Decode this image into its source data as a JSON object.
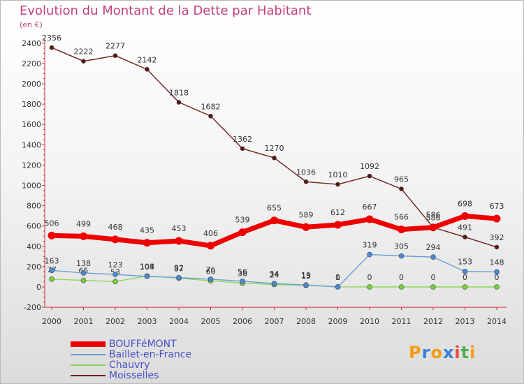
{
  "header": {
    "title": "Evolution du Montant de la Dette par Habitant",
    "unit": "(en €)"
  },
  "logo": {
    "letters": [
      "P",
      "r",
      "o",
      "x",
      "i",
      "t",
      "i"
    ],
    "colors": [
      "#f39c12",
      "#3a7dd8",
      "#f39c12",
      "#3a7dd8",
      "#e74c3c",
      "#4caf50",
      "#f39c12"
    ]
  },
  "chart_data": {
    "type": "line",
    "title": "Evolution du Montant de la Dette par Habitant",
    "ylabel": "(en €)",
    "xlabel": "",
    "x": [
      "2000",
      "2001",
      "2002",
      "2003",
      "2004",
      "2005",
      "2006",
      "2007",
      "2008",
      "2009",
      "2010",
      "2011",
      "2012",
      "2013",
      "2014"
    ],
    "ylim": [
      -200,
      2400
    ],
    "yticks": [
      -200,
      0,
      200,
      400,
      600,
      800,
      1000,
      1200,
      1400,
      1600,
      1800,
      2000,
      2200,
      2400
    ],
    "grid": false,
    "legend_position": "bottom-left",
    "series": [
      {
        "name": "BOUFFéMONT",
        "color": "#ee0000",
        "values": [
          506,
          499,
          468,
          435,
          453,
          406,
          539,
          655,
          589,
          612,
          667,
          566,
          586,
          698,
          673
        ]
      },
      {
        "name": "Baillet-en-France",
        "color": "#6a9fd4",
        "values": [
          163,
          138,
          123,
          104,
          92,
          76,
          56,
          34,
          19,
          0,
          319,
          305,
          294,
          153,
          148
        ],
        "labels": [
          "163",
          "138",
          "123",
          "104",
          "92",
          "76",
          "56",
          "34",
          "19",
          "0",
          "319",
          "305",
          "294",
          "153",
          "148"
        ]
      },
      {
        "name": "Chauvry",
        "color": "#8fd65a",
        "values": [
          77,
          65,
          53,
          108,
          87,
          60,
          38,
          24,
          15,
          1,
          0,
          0,
          0,
          0,
          0
        ],
        "labels": [
          "77",
          "65",
          "53",
          "108",
          "87",
          "60",
          "38",
          "24",
          "15",
          "1",
          "0",
          "0",
          "0",
          "0",
          "0"
        ]
      },
      {
        "name": "Moisselles",
        "color": "#6b2020",
        "values": [
          2356,
          2222,
          2277,
          2142,
          1818,
          1682,
          1362,
          1270,
          1036,
          1010,
          1092,
          965,
          586,
          491,
          392
        ]
      }
    ]
  }
}
